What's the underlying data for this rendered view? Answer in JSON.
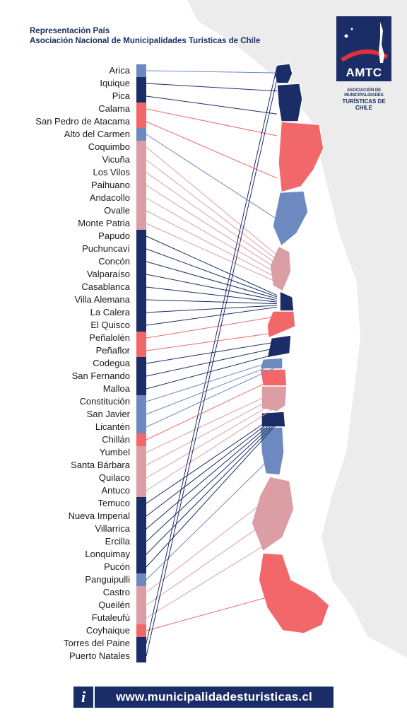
{
  "header": {
    "line1": "Representación País",
    "line2": "Asociación Nacional de Municipalidades Turísticas de Chile"
  },
  "logo": {
    "text": "AMTC",
    "sub_line1": "ASOCIACIÓN DE MUNICIPALIDADES",
    "sub_line2": "TURÍSTICAS DE CHILE"
  },
  "colors": {
    "navy": "#1a2d66",
    "steel": "#6d8ac0",
    "coral": "#f2676a",
    "rose": "#dc9ea5",
    "land": "#ececec"
  },
  "municipalities": [
    {
      "name": "Arica",
      "color": "steel"
    },
    {
      "name": "Iquique",
      "color": "navy"
    },
    {
      "name": "Pica",
      "color": "navy"
    },
    {
      "name": "Calama",
      "color": "coral"
    },
    {
      "name": "San Pedro de Atacama",
      "color": "coral"
    },
    {
      "name": "Alto del Carmen",
      "color": "steel"
    },
    {
      "name": "Coquimbo",
      "color": "rose"
    },
    {
      "name": "Vicuña",
      "color": "rose"
    },
    {
      "name": "Los Vilos",
      "color": "rose"
    },
    {
      "name": "Paihuano",
      "color": "rose"
    },
    {
      "name": "Andacollo",
      "color": "rose"
    },
    {
      "name": "Ovalle",
      "color": "rose"
    },
    {
      "name": "Monte Patria",
      "color": "rose"
    },
    {
      "name": "Papudo",
      "color": "navy"
    },
    {
      "name": "Puchuncaví",
      "color": "navy"
    },
    {
      "name": "Concón",
      "color": "navy"
    },
    {
      "name": "Valparaíso",
      "color": "navy"
    },
    {
      "name": "Casablanca",
      "color": "navy"
    },
    {
      "name": "Villa Alemana",
      "color": "navy"
    },
    {
      "name": "La Calera",
      "color": "navy"
    },
    {
      "name": "El Quisco",
      "color": "navy"
    },
    {
      "name": "Peñalolén",
      "color": "coral"
    },
    {
      "name": "Peñaflor",
      "color": "coral"
    },
    {
      "name": "Codegua",
      "color": "navy"
    },
    {
      "name": "San Fernando",
      "color": "navy"
    },
    {
      "name": "Malloa",
      "color": "navy"
    },
    {
      "name": "Constitución",
      "color": "steel"
    },
    {
      "name": "San Javier",
      "color": "steel"
    },
    {
      "name": "Licantén",
      "color": "steel"
    },
    {
      "name": "Chillán",
      "color": "coral"
    },
    {
      "name": "Yumbel",
      "color": "rose"
    },
    {
      "name": "Santa Bárbara",
      "color": "rose"
    },
    {
      "name": "Quilaco",
      "color": "rose"
    },
    {
      "name": "Antuco",
      "color": "rose"
    },
    {
      "name": "Temuco",
      "color": "navy"
    },
    {
      "name": "Nueva Imperial",
      "color": "navy"
    },
    {
      "name": "Villarrica",
      "color": "navy"
    },
    {
      "name": "Ercilla",
      "color": "navy"
    },
    {
      "name": "Lonquimay",
      "color": "navy"
    },
    {
      "name": "Pucón",
      "color": "navy"
    },
    {
      "name": "Panguipulli",
      "color": "steel"
    },
    {
      "name": "Castro",
      "color": "rose"
    },
    {
      "name": "Queilén",
      "color": "rose"
    },
    {
      "name": "Futaleufú",
      "color": "rose"
    },
    {
      "name": "Coyhaique",
      "color": "coral"
    },
    {
      "name": "Torres del Paine",
      "color": "navy"
    },
    {
      "name": "Puerto Natales",
      "color": "navy"
    }
  ],
  "footer": {
    "info_icon": "i",
    "url": "www.municipalidadesturisticas.cl"
  }
}
